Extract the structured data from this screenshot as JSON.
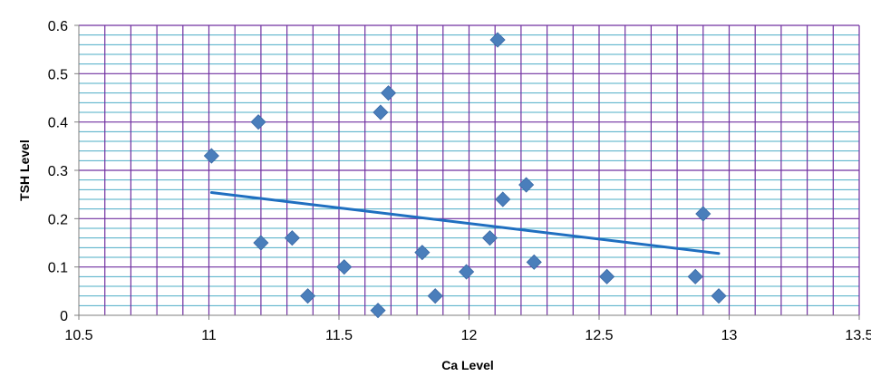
{
  "chart_data": {
    "type": "scatter",
    "title": "",
    "xlabel": "Ca Level",
    "ylabel": "TSH Level",
    "xlim": [
      10.5,
      13.5
    ],
    "ylim": [
      0,
      0.6
    ],
    "x_ticks": [
      "10.5",
      "11",
      "11.5",
      "12",
      "12.5",
      "13",
      "13.5"
    ],
    "y_ticks": [
      "0",
      "0.1",
      "0.2",
      "0.3",
      "0.4",
      "0.5",
      "0.6"
    ],
    "grid": true,
    "legend": "none",
    "series": [
      {
        "marker": "diamond",
        "color": "#4a7ebb",
        "points": [
          {
            "x": 11.01,
            "y": 0.33
          },
          {
            "x": 11.19,
            "y": 0.4
          },
          {
            "x": 11.2,
            "y": 0.15
          },
          {
            "x": 11.32,
            "y": 0.16
          },
          {
            "x": 11.38,
            "y": 0.04
          },
          {
            "x": 11.52,
            "y": 0.1
          },
          {
            "x": 11.65,
            "y": 0.01
          },
          {
            "x": 11.66,
            "y": 0.42
          },
          {
            "x": 11.69,
            "y": 0.46
          },
          {
            "x": 11.82,
            "y": 0.13
          },
          {
            "x": 11.87,
            "y": 0.04
          },
          {
            "x": 11.99,
            "y": 0.09
          },
          {
            "x": 12.08,
            "y": 0.16
          },
          {
            "x": 12.11,
            "y": 0.57
          },
          {
            "x": 12.13,
            "y": 0.24
          },
          {
            "x": 12.22,
            "y": 0.27
          },
          {
            "x": 12.25,
            "y": 0.11
          },
          {
            "x": 12.53,
            "y": 0.08
          },
          {
            "x": 12.87,
            "y": 0.08
          },
          {
            "x": 12.9,
            "y": 0.21
          },
          {
            "x": 12.96,
            "y": 0.04
          }
        ]
      }
    ],
    "trendline": {
      "type": "linear",
      "color": "#1f6fc0",
      "x_start": 11.01,
      "y_start": 0.254,
      "x_end": 12.96,
      "y_end": 0.128
    },
    "colors": {
      "major_grid": "#7030a0",
      "minor_grid": "#4bacc6",
      "marker": "#4a7ebb",
      "trendline": "#1f6fc0"
    }
  }
}
